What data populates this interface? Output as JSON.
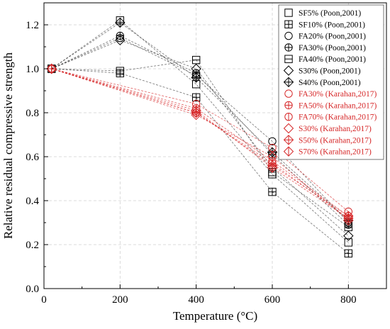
{
  "chart_data": {
    "type": "line",
    "xlabel": "Temperature (°C)",
    "ylabel": "Relative residual compressive strength",
    "xlim": [
      0,
      900
    ],
    "ylim": [
      0.0,
      1.3
    ],
    "x_ticks": [
      "0",
      "200",
      "400",
      "600",
      "800"
    ],
    "y_ticks": [
      "0.0",
      "0.2",
      "0.4",
      "0.6",
      "0.8",
      "1.0",
      "1.2"
    ],
    "grid": true,
    "legend_position": "top-right",
    "series": [
      {
        "name": "SF5% (Poon,2001)",
        "marker": "square",
        "color": "#000000",
        "x": [
          20,
          200,
          400,
          600,
          800
        ],
        "y": [
          1.0,
          1.22,
          0.93,
          0.52,
          0.21
        ]
      },
      {
        "name": "SF10% (Poon,2001)",
        "marker": "square-plus",
        "color": "#000000",
        "x": [
          20,
          200,
          400,
          600,
          800
        ],
        "y": [
          1.0,
          0.98,
          0.87,
          0.44,
          0.16
        ]
      },
      {
        "name": "FA20% (Poon,2001)",
        "marker": "circle",
        "color": "#000000",
        "x": [
          20,
          200,
          400,
          600,
          800
        ],
        "y": [
          1.0,
          1.14,
          0.97,
          0.67,
          0.3
        ]
      },
      {
        "name": "FA30% (Poon,2001)",
        "marker": "circle-plus",
        "color": "#000000",
        "x": [
          20,
          200,
          400,
          600,
          800
        ],
        "y": [
          1.0,
          1.15,
          0.98,
          0.61,
          0.29
        ]
      },
      {
        "name": "FA40% (Poon,2001)",
        "marker": "square-line",
        "color": "#000000",
        "x": [
          20,
          200,
          400,
          600,
          800
        ],
        "y": [
          1.0,
          0.99,
          1.04,
          0.53,
          0.28
        ]
      },
      {
        "name": "S30% (Poon,2001)",
        "marker": "diamond",
        "color": "#000000",
        "x": [
          20,
          200,
          400,
          600,
          800
        ],
        "y": [
          1.0,
          1.13,
          1.0,
          0.55,
          0.24
        ]
      },
      {
        "name": "S40% (Poon,2001)",
        "marker": "diamond-plus",
        "color": "#000000",
        "x": [
          20,
          200,
          400,
          600,
          800
        ],
        "y": [
          1.0,
          1.21,
          0.96,
          0.62,
          0.31
        ]
      },
      {
        "name": "FA30% (Karahan,2017)",
        "marker": "circle",
        "color": "#d62728",
        "x": [
          20,
          400,
          600,
          800
        ],
        "y": [
          1.0,
          0.84,
          0.64,
          0.35
        ]
      },
      {
        "name": "FA50% (Karahan,2017)",
        "marker": "circle-plus",
        "color": "#d62728",
        "x": [
          20,
          400,
          600,
          800
        ],
        "y": [
          1.0,
          0.8,
          0.57,
          0.32
        ]
      },
      {
        "name": "FA70% (Karahan,2017)",
        "marker": "circle-line",
        "color": "#d62728",
        "x": [
          20,
          400,
          600,
          800
        ],
        "y": [
          1.0,
          0.82,
          0.58,
          0.33
        ]
      },
      {
        "name": "S30%  (Karahan,2017)",
        "marker": "diamond",
        "color": "#d62728",
        "x": [
          20,
          400,
          600,
          800
        ],
        "y": [
          1.0,
          0.79,
          0.6,
          0.31
        ]
      },
      {
        "name": "S50%  (Karahan,2017)",
        "marker": "diamond-plus",
        "color": "#d62728",
        "x": [
          20,
          400,
          600,
          800
        ],
        "y": [
          1.0,
          0.8,
          0.56,
          0.33
        ]
      },
      {
        "name": "S70% (Karahan,2017)",
        "marker": "diamond-line",
        "color": "#d62728",
        "x": [
          20,
          400,
          600,
          800
        ],
        "y": [
          1.0,
          0.81,
          0.55,
          0.32
        ]
      }
    ]
  }
}
